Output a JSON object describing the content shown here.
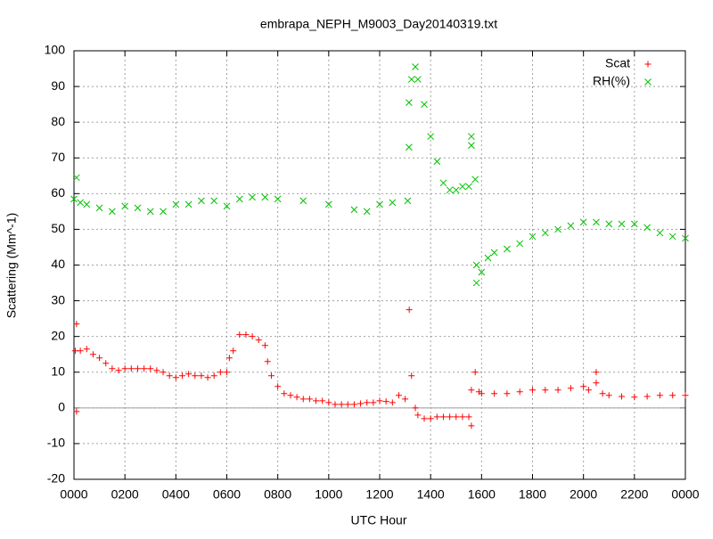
{
  "chart_data": {
    "type": "scatter",
    "title": "embrapa_NEPH_M9003_Day20140319.txt",
    "x_label": "UTC Hour",
    "y_label": "Scattering (Mm^-1)",
    "xlim": [
      0,
      24
    ],
    "xticks": [
      {
        "value": 0,
        "label": "0000"
      },
      {
        "value": 2,
        "label": "0200"
      },
      {
        "value": 4,
        "label": "0400"
      },
      {
        "value": 6,
        "label": "0600"
      },
      {
        "value": 8,
        "label": "0800"
      },
      {
        "value": 10,
        "label": "1000"
      },
      {
        "value": 12,
        "label": "1200"
      },
      {
        "value": 14,
        "label": "1400"
      },
      {
        "value": 16,
        "label": "1600"
      },
      {
        "value": 18,
        "label": "1800"
      },
      {
        "value": 20,
        "label": "2000"
      },
      {
        "value": 22,
        "label": "2200"
      },
      {
        "value": 24,
        "label": "0000"
      }
    ],
    "ylim": [
      -20,
      100
    ],
    "yticks": [
      -20,
      -10,
      0,
      10,
      20,
      30,
      40,
      50,
      60,
      70,
      80,
      90,
      100
    ],
    "grid": true,
    "legend": "top-right",
    "series": [
      {
        "name": "Scat",
        "color": "#ff0000",
        "marker": "plus",
        "x": [
          0.05,
          0.1,
          0.1,
          0.25,
          0.5,
          0.75,
          1.0,
          1.25,
          1.5,
          1.75,
          2.0,
          2.25,
          2.5,
          2.75,
          3.0,
          3.25,
          3.5,
          3.75,
          4.0,
          4.25,
          4.5,
          4.75,
          5.0,
          5.25,
          5.5,
          5.75,
          6.0,
          6.1,
          6.25,
          6.5,
          6.75,
          7.0,
          7.25,
          7.5,
          7.6,
          7.75,
          8.0,
          8.25,
          8.5,
          8.75,
          9.0,
          9.25,
          9.5,
          9.75,
          10.0,
          10.25,
          10.5,
          10.75,
          11.0,
          11.25,
          11.5,
          11.75,
          12.0,
          12.25,
          12.5,
          12.75,
          13.0,
          13.16,
          13.25,
          13.4,
          13.5,
          13.75,
          14.0,
          14.25,
          14.5,
          14.75,
          15.0,
          15.25,
          15.5,
          15.6,
          15.6,
          15.75,
          15.9,
          16.0,
          16.5,
          17.0,
          17.5,
          18.0,
          18.5,
          19.0,
          19.5,
          20.0,
          20.2,
          20.5,
          20.5,
          20.75,
          21.0,
          21.5,
          22.0,
          22.5,
          23.0,
          23.5,
          24.0
        ],
        "values": [
          16,
          23.5,
          -1,
          16,
          16.5,
          15,
          14,
          12.5,
          11,
          10.5,
          11,
          11,
          11,
          11,
          11,
          10.5,
          10,
          9,
          8.5,
          9,
          9.5,
          9,
          9,
          8.5,
          9,
          10,
          10,
          14,
          16,
          20.5,
          20.5,
          20,
          19,
          17.5,
          13,
          9,
          6,
          4,
          3.5,
          3,
          2.5,
          2.5,
          2,
          2,
          1.5,
          1,
          1,
          1,
          1,
          1.2,
          1.5,
          1.5,
          2,
          1.8,
          1.5,
          3.5,
          2.5,
          27.5,
          9,
          0,
          -2,
          -3,
          -3,
          -2.5,
          -2.5,
          -2.5,
          -2.5,
          -2.5,
          -2.5,
          5,
          -5,
          10,
          4.5,
          4,
          4,
          4,
          4.5,
          5,
          5,
          5,
          5.5,
          6,
          5,
          7,
          10,
          4,
          3.5,
          3.2,
          3,
          3.2,
          3.5,
          3.5,
          3.5
        ]
      },
      {
        "name": "RH(%)",
        "color": "#00c000",
        "marker": "cross",
        "x": [
          0.0,
          0.1,
          0.25,
          0.5,
          1.0,
          1.5,
          2.0,
          2.5,
          3.0,
          3.5,
          4.0,
          4.5,
          5.0,
          5.5,
          6.0,
          6.5,
          7.0,
          7.5,
          8.0,
          9.0,
          10.0,
          11.0,
          11.5,
          12.0,
          12.5,
          13.1,
          13.15,
          13.15,
          13.25,
          13.4,
          13.5,
          13.75,
          14.0,
          14.25,
          14.5,
          14.75,
          15.0,
          15.25,
          15.5,
          15.6,
          15.6,
          15.75,
          15.8,
          15.8,
          16.0,
          16.25,
          16.5,
          17.0,
          17.5,
          18.0,
          18.5,
          19.0,
          19.5,
          20.0,
          20.5,
          21.0,
          21.5,
          22.0,
          22.5,
          23.0,
          23.5,
          24.0
        ],
        "values": [
          58.5,
          64.5,
          57.5,
          57,
          56,
          55,
          56.5,
          56,
          55,
          55,
          57,
          57,
          58,
          58,
          56.5,
          58.5,
          59,
          59,
          58.5,
          58,
          57,
          55.5,
          55,
          57,
          57.5,
          58,
          73,
          85.5,
          92,
          95.5,
          92,
          85,
          76,
          69,
          63,
          61,
          61,
          62,
          62,
          76,
          73.5,
          64,
          40,
          35,
          38,
          42,
          43.5,
          44.5,
          46,
          48,
          49,
          50,
          51,
          52,
          52,
          51.5,
          51.5,
          51.5,
          50.5,
          49,
          48,
          47.5
        ]
      }
    ]
  }
}
